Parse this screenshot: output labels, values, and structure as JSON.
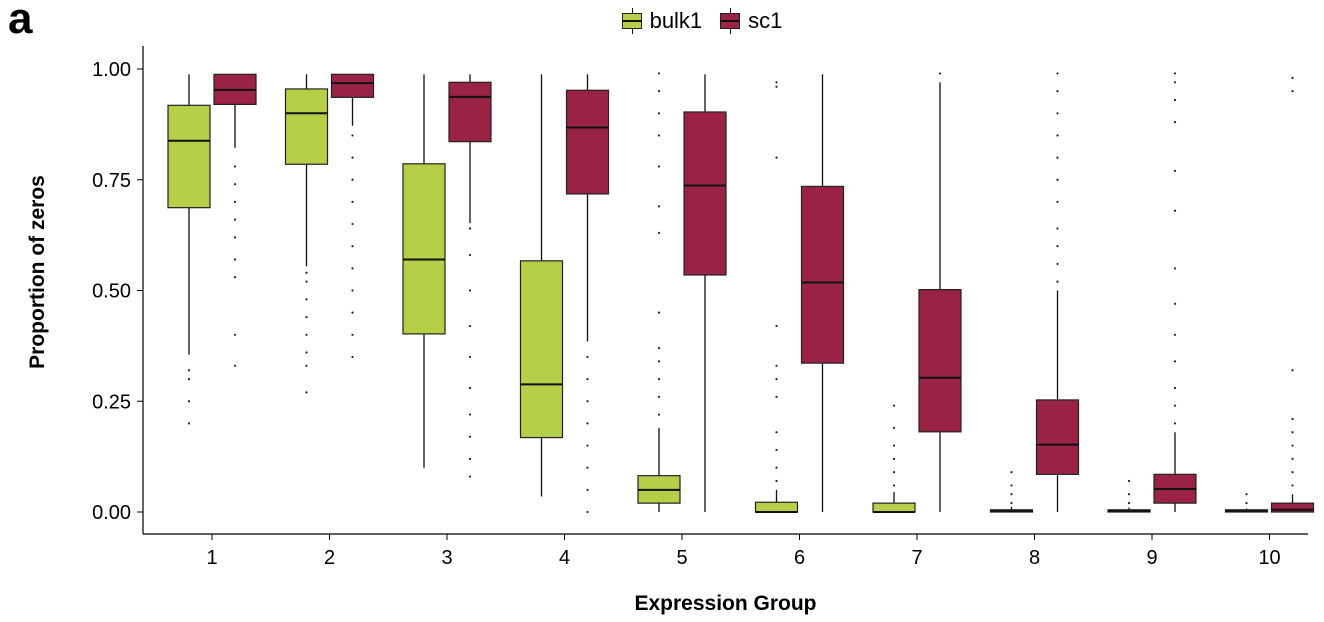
{
  "panel_label": "a",
  "colors": {
    "bulk1": "#b5cf48",
    "sc1": "#9a2244"
  },
  "chart_data": {
    "type": "boxplot",
    "xlabel": "Expression Group",
    "ylabel": "Proportion of zeros",
    "ylim": [
      0,
      1
    ],
    "yticks": [
      "0.00",
      "0.25",
      "0.50",
      "0.75",
      "1.00"
    ],
    "categories": [
      "1",
      "2",
      "3",
      "4",
      "5",
      "6",
      "7",
      "8",
      "9",
      "10"
    ],
    "legend": {
      "position": "top-center",
      "entries": [
        "bulk1",
        "sc1"
      ]
    },
    "grid": false,
    "series": [
      {
        "name": "bulk1",
        "boxes": [
          {
            "wlo": 0.355,
            "q1": 0.687,
            "med": 0.838,
            "q3": 0.918,
            "whi": 0.988,
            "outliers": [
              0.2,
              0.25,
              0.3,
              0.32
            ]
          },
          {
            "wlo": 0.555,
            "q1": 0.785,
            "med": 0.9,
            "q3": 0.955,
            "whi": 0.988,
            "outliers": [
              0.27,
              0.33,
              0.36,
              0.4,
              0.44,
              0.48,
              0.52,
              0.54
            ]
          },
          {
            "wlo": 0.1,
            "q1": 0.402,
            "med": 0.57,
            "q3": 0.786,
            "whi": 0.988,
            "outliers": []
          },
          {
            "wlo": 0.035,
            "q1": 0.168,
            "med": 0.288,
            "q3": 0.567,
            "whi": 0.988,
            "outliers": []
          },
          {
            "wlo": 0.0,
            "q1": 0.02,
            "med": 0.05,
            "q3": 0.082,
            "whi": 0.19,
            "outliers": [
              0.22,
              0.26,
              0.3,
              0.34,
              0.37,
              0.45,
              0.63,
              0.69,
              0.78,
              0.85,
              0.9,
              0.95,
              0.99
            ]
          },
          {
            "wlo": 0.0,
            "q1": 0.0,
            "med": 0.0,
            "q3": 0.022,
            "whi": 0.05,
            "outliers": [
              0.07,
              0.1,
              0.14,
              0.18,
              0.26,
              0.3,
              0.33,
              0.42,
              0.8,
              0.96,
              0.97
            ]
          },
          {
            "wlo": 0.0,
            "q1": 0.0,
            "med": 0.0,
            "q3": 0.02,
            "whi": 0.045,
            "outliers": [
              0.06,
              0.09,
              0.12,
              0.15,
              0.19,
              0.24
            ]
          },
          {
            "wlo": 0.0,
            "q1": 0.0,
            "med": 0.002,
            "q3": 0.005,
            "whi": 0.012,
            "outliers": [
              0.02,
              0.04,
              0.06,
              0.09
            ]
          },
          {
            "wlo": 0.0,
            "q1": 0.0,
            "med": 0.002,
            "q3": 0.005,
            "whi": 0.01,
            "outliers": [
              0.02,
              0.04,
              0.07
            ]
          },
          {
            "wlo": 0.0,
            "q1": 0.0,
            "med": 0.002,
            "q3": 0.005,
            "whi": 0.008,
            "outliers": [
              0.02,
              0.04
            ]
          }
        ]
      },
      {
        "name": "sc1",
        "boxes": [
          {
            "wlo": 0.822,
            "q1": 0.92,
            "med": 0.953,
            "q3": 0.988,
            "whi": 0.988,
            "outliers": [
              0.33,
              0.4,
              0.53,
              0.57,
              0.62,
              0.66,
              0.7,
              0.74,
              0.78
            ]
          },
          {
            "wlo": 0.872,
            "q1": 0.936,
            "med": 0.968,
            "q3": 0.988,
            "whi": 0.988,
            "outliers": [
              0.35,
              0.4,
              0.45,
              0.5,
              0.55,
              0.6,
              0.65,
              0.7,
              0.75,
              0.8,
              0.85
            ]
          },
          {
            "wlo": 0.652,
            "q1": 0.836,
            "med": 0.937,
            "q3": 0.97,
            "whi": 0.988,
            "outliers": [
              0.08,
              0.12,
              0.17,
              0.22,
              0.28,
              0.35,
              0.42,
              0.5,
              0.58,
              0.64
            ]
          },
          {
            "wlo": 0.385,
            "q1": 0.718,
            "med": 0.868,
            "q3": 0.952,
            "whi": 0.988,
            "outliers": [
              0.0,
              0.05,
              0.1,
              0.15,
              0.2,
              0.25,
              0.3,
              0.35
            ]
          },
          {
            "wlo": 0.0,
            "q1": 0.535,
            "med": 0.737,
            "q3": 0.903,
            "whi": 0.988,
            "outliers": []
          },
          {
            "wlo": 0.0,
            "q1": 0.336,
            "med": 0.518,
            "q3": 0.735,
            "whi": 0.988,
            "outliers": []
          },
          {
            "wlo": 0.0,
            "q1": 0.181,
            "med": 0.303,
            "q3": 0.502,
            "whi": 0.97,
            "outliers": [
              0.99
            ]
          },
          {
            "wlo": 0.0,
            "q1": 0.085,
            "med": 0.152,
            "q3": 0.253,
            "whi": 0.5,
            "outliers": [
              0.52,
              0.56,
              0.6,
              0.64,
              0.7,
              0.75,
              0.8,
              0.85,
              0.9,
              0.95,
              0.99
            ]
          },
          {
            "wlo": 0.0,
            "q1": 0.02,
            "med": 0.052,
            "q3": 0.085,
            "whi": 0.18,
            "outliers": [
              0.2,
              0.24,
              0.28,
              0.34,
              0.4,
              0.47,
              0.55,
              0.68,
              0.77,
              0.88,
              0.93,
              0.97,
              0.99
            ]
          },
          {
            "wlo": 0.0,
            "q1": 0.0,
            "med": 0.005,
            "q3": 0.02,
            "whi": 0.04,
            "outliers": [
              0.06,
              0.09,
              0.12,
              0.15,
              0.18,
              0.21,
              0.32,
              0.95,
              0.98
            ]
          }
        ]
      }
    ]
  }
}
